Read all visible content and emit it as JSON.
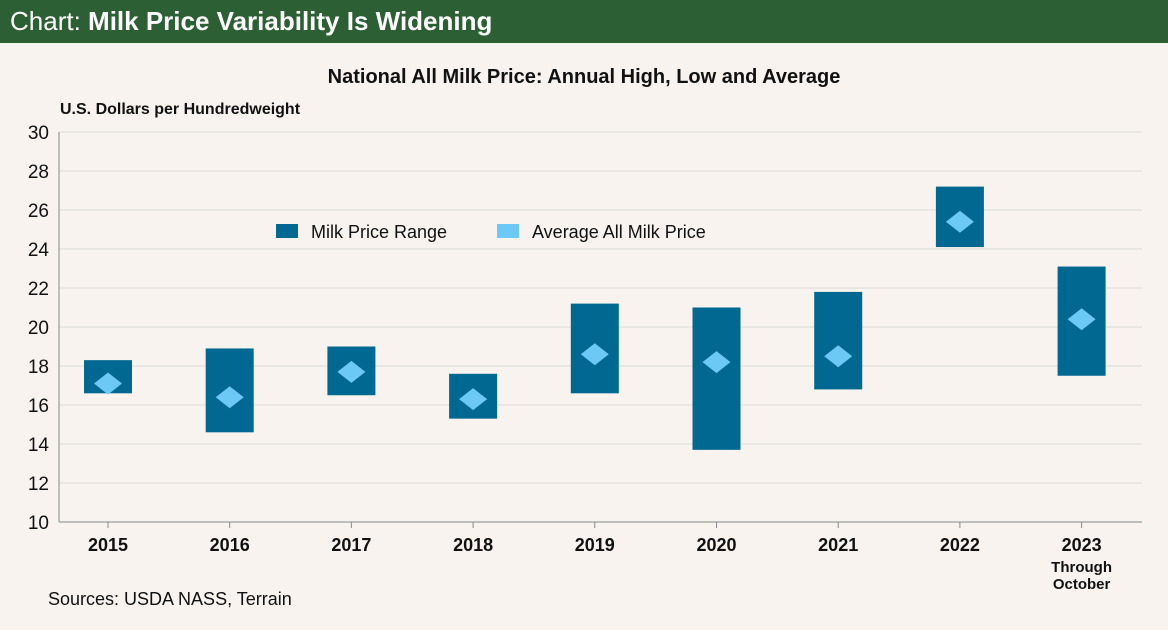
{
  "header": {
    "prefix": "Chart:",
    "title": "Milk Price Variability Is Widening"
  },
  "source": "Sources: USDA NASS, Terrain",
  "colors": {
    "header_bg": "#2c5f34",
    "range": "#006891",
    "average": "#6cc9f5",
    "grid": "#dcd8d4",
    "background": "#f8f3ee"
  },
  "chart_data": {
    "type": "range-bar",
    "title": "National All Milk Price: Annual High, Low and Average",
    "ylabel": "U.S. Dollars per Hundredweight",
    "xlabel": "",
    "ylim": [
      10,
      30
    ],
    "yticks": [
      10,
      12,
      14,
      16,
      18,
      20,
      22,
      24,
      26,
      28,
      30
    ],
    "grid": true,
    "legend": [
      {
        "name": "Milk Price Range",
        "marker": "square"
      },
      {
        "name": "Average All Milk Price",
        "marker": "diamond"
      }
    ],
    "categories": [
      "2015",
      "2016",
      "2017",
      "2018",
      "2019",
      "2020",
      "2021",
      "2022",
      "2023"
    ],
    "category_notes": [
      "",
      "",
      "",
      "",
      "",
      "",
      "",
      "",
      "Through October"
    ],
    "series": [
      {
        "name": "Low",
        "values": [
          16.6,
          14.6,
          16.5,
          15.3,
          16.6,
          13.7,
          16.8,
          24.1,
          17.5
        ]
      },
      {
        "name": "High",
        "values": [
          18.3,
          18.9,
          19.0,
          17.6,
          21.2,
          21.0,
          21.8,
          27.2,
          23.1
        ]
      },
      {
        "name": "Average",
        "values": [
          17.1,
          16.4,
          17.7,
          16.3,
          18.6,
          18.2,
          18.5,
          25.4,
          20.4
        ]
      }
    ]
  }
}
